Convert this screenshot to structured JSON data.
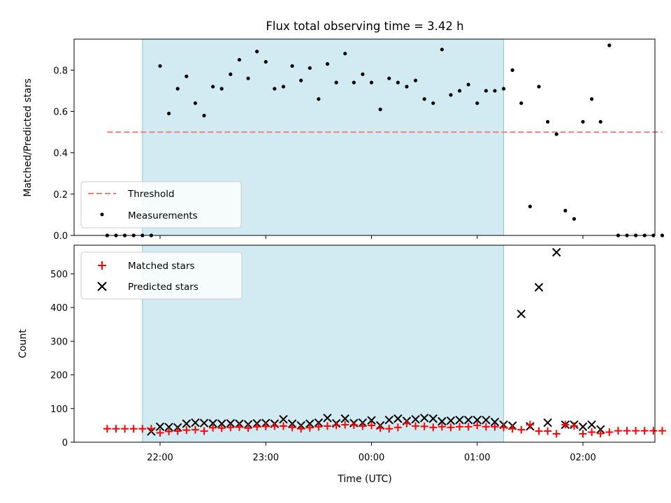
{
  "chart_data": [
    {
      "type": "scatter",
      "title": "Flux total observing time = 3.42 h",
      "ylabel": "Matched/Predicted stars",
      "xlabel": "",
      "ylim": [
        0,
        0.95
      ],
      "yticks": [
        "0.0",
        "0.2",
        "0.4",
        "0.6",
        "0.8"
      ],
      "ytick_values": [
        0,
        0.2,
        0.4,
        0.6,
        0.8
      ],
      "legend_position": "lower-left",
      "threshold": {
        "name": "Threshold",
        "value": 0.5,
        "x_range": [
          "21:30",
          "02:45"
        ],
        "color": "#f08080"
      },
      "shaded_region": {
        "x_range": [
          "21:50",
          "01:15"
        ],
        "color": "#add8e6"
      },
      "series": [
        {
          "name": "Measurements",
          "color": "#000000",
          "x": [
            "21:30",
            "21:35",
            "21:40",
            "21:45",
            "21:50",
            "21:55",
            "22:00",
            "22:05",
            "22:10",
            "22:15",
            "22:20",
            "22:25",
            "22:30",
            "22:35",
            "22:40",
            "22:45",
            "22:50",
            "22:55",
            "23:00",
            "23:05",
            "23:10",
            "23:15",
            "23:20",
            "23:25",
            "23:30",
            "23:35",
            "23:40",
            "23:45",
            "23:50",
            "23:55",
            "00:00",
            "00:05",
            "00:10",
            "00:15",
            "00:20",
            "00:25",
            "00:30",
            "00:35",
            "00:40",
            "00:45",
            "00:50",
            "00:55",
            "01:00",
            "01:05",
            "01:10",
            "01:15",
            "01:20",
            "01:25",
            "01:30",
            "01:35",
            "01:40",
            "01:45",
            "01:50",
            "01:55",
            "02:00",
            "02:05",
            "02:10",
            "02:15",
            "02:20",
            "02:25",
            "02:30",
            "02:35",
            "02:40",
            "02:45"
          ],
          "y": [
            0.0,
            0.0,
            0.0,
            0.0,
            0.0,
            0.0,
            0.82,
            0.59,
            0.71,
            0.77,
            0.64,
            0.58,
            0.72,
            0.71,
            0.78,
            0.85,
            0.76,
            0.89,
            0.84,
            0.71,
            0.72,
            0.82,
            0.75,
            0.81,
            0.66,
            0.83,
            0.74,
            0.88,
            0.74,
            0.78,
            0.74,
            0.61,
            0.76,
            0.74,
            0.72,
            0.75,
            0.66,
            0.64,
            0.9,
            0.68,
            0.7,
            0.73,
            0.64,
            0.7,
            0.7,
            0.71,
            0.8,
            0.64,
            0.14,
            0.72,
            0.55,
            0.49,
            0.12,
            0.08,
            0.55,
            0.66,
            0.55,
            0.92,
            0.0,
            0.0,
            0.0,
            0.0,
            0.0,
            0.0
          ]
        }
      ]
    },
    {
      "type": "scatter",
      "title": "",
      "ylabel": "Count",
      "xlabel": "Time (UTC)",
      "ylim": [
        0,
        585
      ],
      "yticks": [
        "0",
        "100",
        "200",
        "300",
        "400",
        "500"
      ],
      "ytick_values": [
        0,
        100,
        200,
        300,
        400,
        500
      ],
      "xticks": [
        "22:00",
        "23:00",
        "00:00",
        "01:00",
        "02:00"
      ],
      "legend_position": "upper-left",
      "shaded_region": {
        "x_range": [
          "21:50",
          "01:15"
        ],
        "color": "#add8e6"
      },
      "series": [
        {
          "name": "Matched stars",
          "color": "#ff0000",
          "marker": "plus",
          "x": [
            "21:30",
            "21:35",
            "21:40",
            "21:45",
            "21:50",
            "21:55",
            "22:00",
            "22:05",
            "22:10",
            "22:15",
            "22:20",
            "22:25",
            "22:30",
            "22:35",
            "22:40",
            "22:45",
            "22:50",
            "22:55",
            "23:00",
            "23:05",
            "23:10",
            "23:15",
            "23:20",
            "23:25",
            "23:30",
            "23:35",
            "23:40",
            "23:45",
            "23:50",
            "23:55",
            "00:00",
            "00:05",
            "00:10",
            "00:15",
            "00:20",
            "00:25",
            "00:30",
            "00:35",
            "00:40",
            "00:45",
            "00:50",
            "00:55",
            "01:00",
            "01:05",
            "01:10",
            "01:15",
            "01:20",
            "01:25",
            "01:30",
            "01:35",
            "01:40",
            "01:45",
            "01:50",
            "01:55",
            "02:00",
            "02:05",
            "02:10",
            "02:15",
            "02:20",
            "02:25",
            "02:30",
            "02:35",
            "02:40",
            "02:45"
          ],
          "y": [
            40,
            40,
            40,
            40,
            40,
            40,
            28,
            32,
            33,
            36,
            37,
            33,
            43,
            42,
            44,
            45,
            42,
            46,
            47,
            48,
            48,
            44,
            40,
            43,
            46,
            48,
            50,
            52,
            51,
            48,
            50,
            42,
            40,
            44,
            56,
            48,
            47,
            44,
            46,
            44,
            46,
            46,
            50,
            46,
            46,
            44,
            40,
            37,
            52,
            33,
            33,
            25,
            52,
            48,
            25,
            30,
            26,
            30,
            34,
            34,
            34,
            34,
            34,
            34
          ]
        },
        {
          "name": "Predicted stars",
          "color": "#000000",
          "marker": "x",
          "x": [
            "21:55",
            "22:00",
            "22:05",
            "22:10",
            "22:15",
            "22:20",
            "22:25",
            "22:30",
            "22:35",
            "22:40",
            "22:45",
            "22:50",
            "22:55",
            "23:00",
            "23:05",
            "23:10",
            "23:15",
            "23:20",
            "23:25",
            "23:30",
            "23:35",
            "23:40",
            "23:45",
            "23:50",
            "23:55",
            "00:00",
            "00:05",
            "00:10",
            "00:15",
            "00:20",
            "00:25",
            "00:30",
            "00:35",
            "00:40",
            "00:45",
            "00:50",
            "00:55",
            "01:00",
            "01:05",
            "01:10",
            "01:15",
            "01:20",
            "01:25",
            "01:30",
            "01:35",
            "01:40",
            "01:45",
            "01:50",
            "01:55",
            "02:00",
            "02:05",
            "02:10"
          ],
          "y": [
            32,
            46,
            45,
            44,
            55,
            58,
            57,
            56,
            55,
            56,
            55,
            53,
            56,
            57,
            55,
            68,
            55,
            50,
            55,
            58,
            72,
            56,
            70,
            57,
            58,
            65,
            50,
            66,
            70,
            63,
            68,
            72,
            70,
            62,
            64,
            66,
            66,
            66,
            66,
            60,
            52,
            49,
            381,
            47,
            460,
            58,
            564,
            52,
            52,
            46,
            52,
            38
          ]
        }
      ]
    }
  ]
}
